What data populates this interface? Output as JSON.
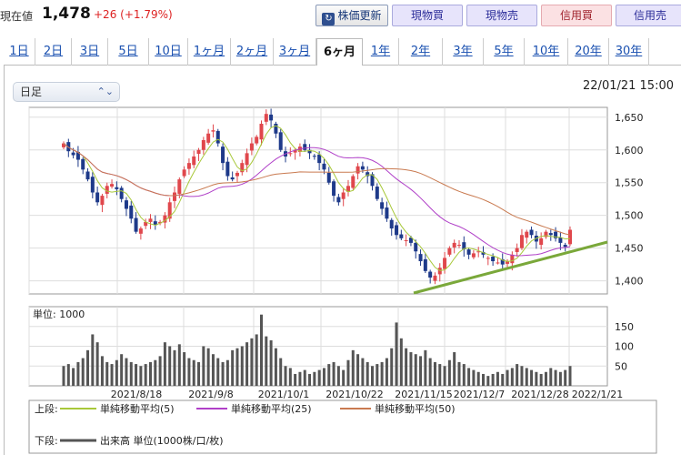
{
  "header": {
    "price_label": "現在値",
    "price": "1,478",
    "change": "+26 (+1.79%)",
    "refresh_button": "株価更新",
    "genbutsu_buy": "現物買",
    "genbutsu_sell": "現物売",
    "shinyo_buy": "信用買",
    "shinyo_sell": "信用売"
  },
  "tabs": [
    "1日",
    "2日",
    "3日",
    "5日",
    "10日",
    "1ヶ月",
    "2ヶ月",
    "3ヶ月",
    "6ヶ月",
    "1年",
    "2年",
    "3年",
    "5年",
    "10年",
    "20年",
    "30年"
  ],
  "active_tab": "6ヶ月",
  "chart_controls": {
    "interval_select": "日足",
    "timestamp": "22/01/21 15:00"
  },
  "legend": {
    "upper_label": "上段:",
    "ma5": "単純移動平均(5)",
    "ma25": "単純移動平均(25)",
    "ma50": "単純移動平均(50)",
    "lower_label": "下段:",
    "volume": "出来高 単位(1000株/口/枚)"
  },
  "colors": {
    "up": "#e0474c",
    "down": "#1e3a8a",
    "ma5": "#a8c83a",
    "ma25": "#b040c8",
    "ma50": "#c97a50",
    "trendline": "#7aa83a",
    "volume": "#555555"
  },
  "chart_data": [
    {
      "type": "candlestick",
      "title": "",
      "x_tick_labels": [
        "2021/8/18",
        "2021/9/8",
        "2021/10/1",
        "2021/10/22",
        "2021/11/15",
        "2021/12/7",
        "2021/12/28",
        "2022/1/21"
      ],
      "y_ticks": [
        1400,
        1450,
        1500,
        1550,
        1600,
        1650
      ],
      "ylim": [
        1380,
        1665
      ],
      "grid": true,
      "series_names": [
        "単純移動平均(5)",
        "単純移動平均(25)",
        "単純移動平均(50)"
      ],
      "closes": [
        1610,
        1598,
        1592,
        1585,
        1570,
        1555,
        1535,
        1520,
        1530,
        1545,
        1548,
        1540,
        1525,
        1510,
        1495,
        1475,
        1480,
        1490,
        1495,
        1485,
        1490,
        1500,
        1520,
        1535,
        1555,
        1570,
        1580,
        1590,
        1600,
        1615,
        1625,
        1630,
        1610,
        1580,
        1560,
        1555,
        1565,
        1580,
        1595,
        1610,
        1620,
        1640,
        1655,
        1645,
        1625,
        1600,
        1590,
        1595,
        1600,
        1605,
        1600,
        1595,
        1590,
        1580,
        1570,
        1550,
        1530,
        1520,
        1535,
        1545,
        1560,
        1575,
        1570,
        1560,
        1545,
        1525,
        1510,
        1495,
        1480,
        1470,
        1465,
        1462,
        1458,
        1445,
        1430,
        1415,
        1405,
        1408,
        1420,
        1435,
        1450,
        1458,
        1455,
        1448,
        1440,
        1442,
        1445,
        1440,
        1435,
        1430,
        1428,
        1425,
        1430,
        1440,
        1450,
        1470,
        1475,
        1470,
        1460,
        1465,
        1475,
        1470,
        1465,
        1458,
        1452,
        1478
      ],
      "ohlc_note": "daily candles, Aug 2021 - Jan 2022",
      "trendline": {
        "from": [
          1390,
          0.58
        ],
        "to": [
          1460,
          1.0
        ]
      }
    },
    {
      "type": "bar",
      "title": "",
      "unit_label": "単位: 1000",
      "y_ticks": [
        50,
        100,
        150
      ],
      "ylim": [
        0,
        200
      ],
      "volumes": [
        50,
        55,
        45,
        60,
        70,
        90,
        130,
        110,
        75,
        60,
        55,
        65,
        80,
        70,
        60,
        55,
        50,
        55,
        60,
        65,
        75,
        110,
        100,
        90,
        105,
        85,
        70,
        65,
        60,
        100,
        95,
        80,
        70,
        60,
        65,
        90,
        95,
        100,
        110,
        120,
        130,
        180,
        125,
        115,
        95,
        70,
        50,
        45,
        30,
        35,
        40,
        30,
        35,
        40,
        45,
        55,
        60,
        50,
        40,
        65,
        90,
        80,
        70,
        60,
        50,
        55,
        60,
        70,
        95,
        160,
        120,
        95,
        85,
        80,
        75,
        90,
        70,
        60,
        55,
        50,
        65,
        85,
        60,
        55,
        45,
        40,
        35,
        30,
        25,
        30,
        35,
        30,
        40,
        45,
        55,
        50,
        45,
        40,
        35,
        30,
        35,
        45,
        40,
        35,
        40,
        50
      ]
    }
  ]
}
